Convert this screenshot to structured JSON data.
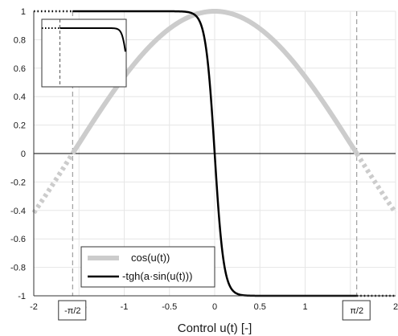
{
  "chart_data": {
    "type": "line",
    "title": "",
    "xlabel": "Control u(t) [-]",
    "ylabel": "",
    "xlim": [
      -2,
      2
    ],
    "ylim": [
      -1,
      1
    ],
    "grid": true,
    "x_ticks": [
      "-2",
      "-1.5",
      "-1",
      "-0.5",
      "0",
      "0.5",
      "1",
      "1.5",
      "2"
    ],
    "y_ticks": [
      "1",
      "0.8",
      "0.6",
      "0.4",
      "0.2",
      "0",
      "-0.2",
      "-0.4",
      "-0.6",
      "-0.8",
      "-1"
    ],
    "boundary_markers": [
      {
        "label": "-π/2",
        "x": -1.5708
      },
      {
        "label": "π/2",
        "x": 1.5708
      }
    ],
    "legend_position": "bottom-center",
    "series": [
      {
        "name": "cos(u(t))",
        "color": "#cccccc",
        "style": "solid inside [-π/2, π/2], dotted outside",
        "x": [
          -2.0,
          -1.5708,
          -1.5,
          -1.25,
          -1.0,
          -0.75,
          -0.5,
          -0.25,
          0.0,
          0.25,
          0.5,
          0.75,
          1.0,
          1.25,
          1.5,
          1.5708,
          2.0
        ],
        "y": [
          -0.416,
          0.0,
          0.071,
          0.315,
          0.54,
          0.732,
          0.878,
          0.969,
          1.0,
          0.969,
          0.878,
          0.732,
          0.54,
          0.315,
          0.071,
          0.0,
          -0.416
        ]
      },
      {
        "name": "-tgh(a·sin(u(t)))",
        "color": "#000000",
        "style": "solid inside [-π/2, π/2], dotted outside",
        "x": [
          -2.0,
          -1.5708,
          -1.0,
          -0.5,
          -0.3,
          -0.2,
          -0.1,
          -0.05,
          0.0,
          0.05,
          0.1,
          0.2,
          0.3,
          0.5,
          1.0,
          1.5708,
          2.0
        ],
        "y": [
          1.0,
          1.0,
          1.0,
          0.997,
          0.96,
          0.86,
          0.54,
          0.29,
          0.0,
          -0.29,
          -0.54,
          -0.86,
          -0.96,
          -0.997,
          -1.0,
          -1.0,
          -1.0
        ]
      }
    ],
    "inset": {
      "description_visible": false,
      "x_ticks": [],
      "y_ticks": [],
      "xlim": [
        -2,
        0
      ],
      "ylim": [
        -1,
        1.3
      ],
      "boundary_x": -1.5708
    }
  },
  "legend": {
    "items": [
      "cos(u(t))",
      "-tgh(a·sin(u(t)))"
    ]
  },
  "markers": {
    "left": "-π/2",
    "right": "π/2"
  }
}
